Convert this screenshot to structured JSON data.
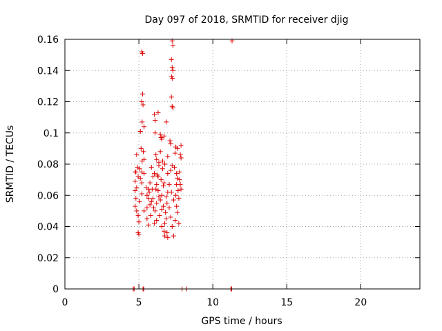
{
  "chart_data": {
    "type": "scatter",
    "title": "Day 097 of 2018, SRMTID for receiver djig",
    "xlabel": "GPS time / hours",
    "ylabel": "SRMTID / TECUs",
    "xlim": [
      0,
      24
    ],
    "ylim": [
      0,
      0.16
    ],
    "xticks": [
      0,
      5,
      10,
      15,
      20
    ],
    "xtick_labels": [
      "0",
      "5",
      "10",
      "15",
      "20"
    ],
    "yticks": [
      0,
      0.02,
      0.04,
      0.06,
      0.08,
      0.1,
      0.12,
      0.14,
      0.16
    ],
    "ytick_labels": [
      "0",
      "0.02",
      "0.04",
      "0.06",
      "0.08",
      "0.1",
      "0.12",
      "0.14",
      "0.16"
    ],
    "grid": true,
    "marker": "plus",
    "color": "#dd0000",
    "series": [
      {
        "points": [
          [
            4.62,
            0.0
          ],
          [
            4.68,
            0.0
          ],
          [
            5.28,
            0.0
          ],
          [
            5.33,
            0.0
          ],
          [
            7.92,
            0.0
          ],
          [
            8.22,
            0.0
          ],
          [
            11.22,
            0.0
          ],
          [
            11.28,
            0.0
          ],
          [
            11.3,
            0.159
          ],
          [
            7.25,
            0.159
          ],
          [
            7.3,
            0.156
          ],
          [
            5.2,
            0.152
          ],
          [
            5.25,
            0.151
          ],
          [
            7.2,
            0.147
          ],
          [
            7.25,
            0.142
          ],
          [
            7.3,
            0.14
          ],
          [
            7.22,
            0.136
          ],
          [
            7.27,
            0.135
          ],
          [
            5.25,
            0.125
          ],
          [
            7.2,
            0.123
          ],
          [
            5.2,
            0.12
          ],
          [
            5.28,
            0.118
          ],
          [
            7.25,
            0.117
          ],
          [
            7.3,
            0.116
          ],
          [
            6.3,
            0.113
          ],
          [
            6.05,
            0.112
          ],
          [
            6.1,
            0.108
          ],
          [
            6.85,
            0.107
          ],
          [
            5.22,
            0.107
          ],
          [
            5.35,
            0.104
          ],
          [
            5.1,
            0.101
          ],
          [
            6.1,
            0.1
          ],
          [
            6.45,
            0.099
          ],
          [
            6.7,
            0.098
          ],
          [
            6.5,
            0.097
          ],
          [
            6.55,
            0.096
          ],
          [
            7.1,
            0.095
          ],
          [
            7.15,
            0.093
          ],
          [
            7.85,
            0.092
          ],
          [
            7.5,
            0.091
          ],
          [
            7.6,
            0.09
          ],
          [
            5.15,
            0.09
          ],
          [
            5.3,
            0.088
          ],
          [
            4.85,
            0.086
          ],
          [
            7.8,
            0.086
          ],
          [
            7.85,
            0.084
          ],
          [
            5.35,
            0.083
          ],
          [
            5.22,
            0.082
          ],
          [
            6.2,
            0.083
          ],
          [
            6.6,
            0.082
          ],
          [
            6.35,
            0.081
          ],
          [
            6.75,
            0.08
          ],
          [
            4.9,
            0.078
          ],
          [
            5.05,
            0.077
          ],
          [
            7.25,
            0.079
          ],
          [
            7.4,
            0.078
          ],
          [
            4.75,
            0.075
          ],
          [
            4.8,
            0.075
          ],
          [
            5.2,
            0.075
          ],
          [
            5.35,
            0.074
          ],
          [
            6.05,
            0.074
          ],
          [
            6.25,
            0.073
          ],
          [
            6.95,
            0.074
          ],
          [
            7.75,
            0.075
          ],
          [
            4.95,
            0.072
          ],
          [
            5.1,
            0.071
          ],
          [
            7.6,
            0.071
          ],
          [
            7.75,
            0.07
          ],
          [
            4.75,
            0.069
          ],
          [
            5.2,
            0.068
          ],
          [
            6.2,
            0.067
          ],
          [
            6.65,
            0.066
          ],
          [
            4.85,
            0.065
          ],
          [
            5.5,
            0.065
          ],
          [
            5.9,
            0.064
          ],
          [
            6.15,
            0.064
          ],
          [
            4.75,
            0.063
          ],
          [
            5.7,
            0.062
          ],
          [
            6.3,
            0.063
          ],
          [
            7.2,
            0.062
          ],
          [
            5.2,
            0.061
          ],
          [
            5.55,
            0.06
          ],
          [
            6.55,
            0.06
          ],
          [
            7.5,
            0.06
          ],
          [
            4.8,
            0.058
          ],
          [
            5.65,
            0.058
          ],
          [
            6.45,
            0.057
          ],
          [
            7.35,
            0.057
          ],
          [
            5.05,
            0.056
          ],
          [
            5.85,
            0.056
          ],
          [
            6.2,
            0.055
          ],
          [
            6.9,
            0.055
          ],
          [
            4.75,
            0.053
          ],
          [
            5.55,
            0.052
          ],
          [
            6.0,
            0.052
          ],
          [
            6.65,
            0.053
          ],
          [
            4.85,
            0.05
          ],
          [
            5.35,
            0.05
          ],
          [
            6.1,
            0.05
          ],
          [
            6.8,
            0.049
          ],
          [
            7.6,
            0.049
          ],
          [
            4.95,
            0.047
          ],
          [
            5.8,
            0.047
          ],
          [
            6.4,
            0.047
          ],
          [
            7.15,
            0.046
          ],
          [
            5.55,
            0.045
          ],
          [
            6.2,
            0.044
          ],
          [
            6.85,
            0.045
          ],
          [
            7.45,
            0.044
          ],
          [
            5.0,
            0.043
          ],
          [
            6.05,
            0.042
          ],
          [
            6.75,
            0.042
          ],
          [
            7.7,
            0.042
          ],
          [
            5.65,
            0.041
          ],
          [
            6.55,
            0.04
          ],
          [
            7.25,
            0.04
          ],
          [
            4.95,
            0.036
          ],
          [
            5.0,
            0.035
          ],
          [
            6.7,
            0.037
          ],
          [
            6.9,
            0.036
          ],
          [
            6.75,
            0.034
          ],
          [
            6.95,
            0.033
          ],
          [
            7.35,
            0.034
          ],
          [
            6.3,
            0.072
          ],
          [
            6.5,
            0.07
          ],
          [
            6.7,
            0.068
          ],
          [
            7.05,
            0.067
          ],
          [
            7.55,
            0.067
          ],
          [
            7.65,
            0.063
          ],
          [
            6.95,
            0.062
          ],
          [
            6.35,
            0.059
          ],
          [
            5.95,
            0.058
          ],
          [
            5.75,
            0.054
          ],
          [
            7.05,
            0.052
          ],
          [
            7.55,
            0.053
          ],
          [
            6.55,
            0.051
          ],
          [
            6.35,
            0.079
          ],
          [
            6.6,
            0.077
          ],
          [
            7.15,
            0.076
          ],
          [
            7.55,
            0.074
          ],
          [
            6.15,
            0.086
          ],
          [
            6.45,
            0.088
          ],
          [
            6.95,
            0.085
          ],
          [
            7.45,
            0.087
          ],
          [
            5.85,
            0.078
          ],
          [
            5.95,
            0.072
          ],
          [
            5.75,
            0.068
          ],
          [
            5.65,
            0.064
          ],
          [
            7.8,
            0.067
          ],
          [
            7.85,
            0.064
          ],
          [
            7.7,
            0.058
          ],
          [
            6.85,
            0.059
          ]
        ]
      }
    ]
  }
}
